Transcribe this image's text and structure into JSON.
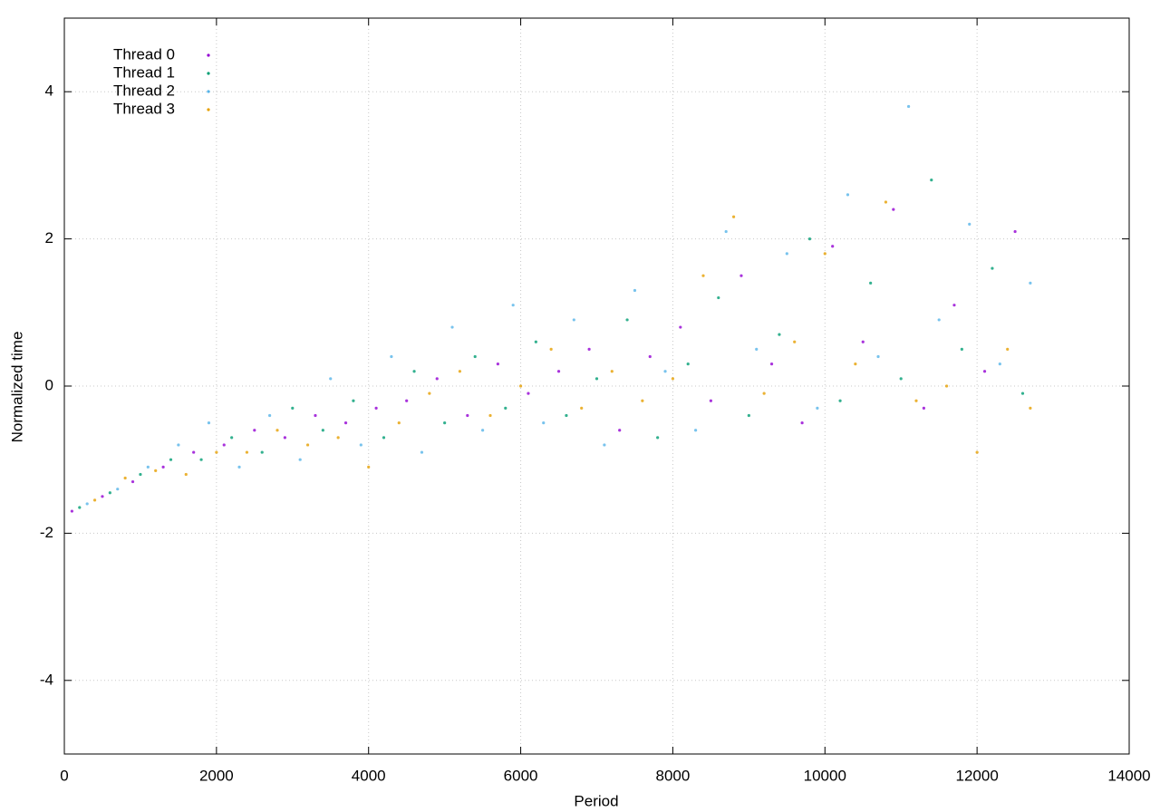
{
  "chart_data": {
    "type": "scatter",
    "x_label": "Period",
    "y_label": "Normalized time",
    "xlim": [
      0,
      14000
    ],
    "ylim": [
      -5,
      5
    ],
    "xticks": [
      0,
      2000,
      4000,
      6000,
      8000,
      10000,
      12000,
      14000
    ],
    "yticks": [
      -4,
      -2,
      0,
      2,
      4
    ],
    "grid": true,
    "legend": "top-left",
    "series": [
      {
        "name": "Thread 0",
        "color": "#9400d3",
        "x": [
          100,
          500,
          900,
          1300,
          1700,
          2100,
          2500,
          2900,
          3300,
          3700,
          4100,
          4500,
          4900,
          5300,
          5700,
          6100,
          6500,
          6900,
          7300,
          7700,
          8100,
          8500,
          8900,
          9300,
          9700,
          10100,
          10500,
          10900,
          11300,
          11700,
          12100,
          12500
        ],
        "values": [
          -1.7,
          -1.5,
          -1.3,
          -1.1,
          -0.9,
          -0.8,
          -0.6,
          -0.7,
          -0.4,
          -0.5,
          -0.3,
          -0.2,
          0.1,
          -0.4,
          0.3,
          -0.1,
          0.2,
          0.5,
          -0.6,
          0.4,
          0.8,
          -0.2,
          1.5,
          0.3,
          -0.5,
          1.9,
          0.6,
          2.4,
          -0.3,
          1.1,
          0.2,
          2.1
        ]
      },
      {
        "name": "Thread 1",
        "color": "#009e73",
        "x": [
          200,
          600,
          1000,
          1400,
          1800,
          2200,
          2600,
          3000,
          3400,
          3800,
          4200,
          4600,
          5000,
          5400,
          5800,
          6200,
          6600,
          7000,
          7400,
          7800,
          8200,
          8600,
          9000,
          9400,
          9800,
          10200,
          10600,
          11000,
          11400,
          11800,
          12200,
          12600
        ],
        "values": [
          -1.65,
          -1.45,
          -1.2,
          -1.0,
          -1.0,
          -0.7,
          -0.9,
          -0.3,
          -0.6,
          -0.2,
          -0.7,
          0.2,
          -0.5,
          0.4,
          -0.3,
          0.6,
          -0.4,
          0.1,
          0.9,
          -0.7,
          0.3,
          1.2,
          -0.4,
          0.7,
          2.0,
          -0.2,
          1.4,
          0.1,
          2.8,
          0.5,
          1.6,
          -0.1
        ]
      },
      {
        "name": "Thread 2",
        "color": "#56b4e9",
        "x": [
          300,
          700,
          1100,
          1500,
          1900,
          2300,
          2700,
          3100,
          3500,
          3900,
          4300,
          4700,
          5100,
          5500,
          5900,
          6300,
          6700,
          7100,
          7500,
          7900,
          8300,
          8700,
          9100,
          9500,
          9900,
          10300,
          10700,
          11100,
          11500,
          11900,
          12300,
          12700
        ],
        "values": [
          -1.6,
          -1.4,
          -1.1,
          -0.8,
          -0.5,
          -1.1,
          -0.4,
          -1.0,
          0.1,
          -0.8,
          0.4,
          -0.9,
          0.8,
          -0.6,
          1.1,
          -0.5,
          0.9,
          -0.8,
          1.3,
          0.2,
          -0.6,
          2.1,
          0.5,
          1.8,
          -0.3,
          2.6,
          0.4,
          3.8,
          0.9,
          2.2,
          0.3,
          1.4
        ]
      },
      {
        "name": "Thread 3",
        "color": "#e69f00",
        "x": [
          400,
          800,
          1200,
          1600,
          2000,
          2400,
          2800,
          3200,
          3600,
          4000,
          4400,
          4800,
          5200,
          5600,
          6000,
          6400,
          6800,
          7200,
          7600,
          8000,
          8400,
          8800,
          9200,
          9600,
          10000,
          10400,
          10800,
          11200,
          11600,
          12000,
          12400,
          12700
        ],
        "values": [
          -1.55,
          -1.25,
          -1.15,
          -1.2,
          -0.9,
          -0.9,
          -0.6,
          -0.8,
          -0.7,
          -1.1,
          -0.5,
          -0.1,
          0.2,
          -0.4,
          0.0,
          0.5,
          -0.3,
          0.2,
          -0.2,
          0.1,
          1.5,
          2.3,
          -0.1,
          0.6,
          1.8,
          0.3,
          2.5,
          -0.2,
          0.0,
          -0.9,
          0.5,
          -0.3
        ]
      }
    ]
  }
}
